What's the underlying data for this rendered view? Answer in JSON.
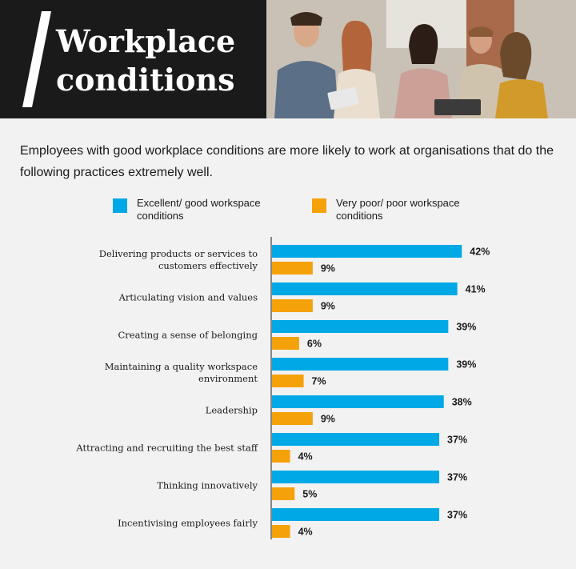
{
  "header": {
    "title_line1": "Workplace",
    "title_line2": "conditions"
  },
  "subtitle": "Employees with good workplace conditions are more likely to work at organisations that do the following practices extremely well.",
  "colors": {
    "excellent": "#00a9e6",
    "poor": "#f5a10a",
    "header_bg": "#1a1a1a",
    "page_bg": "#f2f2f2"
  },
  "chart_data": {
    "type": "bar",
    "orientation": "horizontal",
    "title": "",
    "xlabel": "",
    "ylabel": "",
    "grid": false,
    "legend_position": "top",
    "categories": [
      "Delivering products or services to customers effectively",
      "Articulating vision and values",
      "Creating a sense of belonging",
      "Maintaining a quality workspace environment",
      "Leadership",
      "Attracting and recruiting the best staff",
      "Thinking innovatively",
      "Incentivising employees fairly"
    ],
    "category_lines": [
      [
        "Delivering products or services to",
        "customers effectively"
      ],
      [
        "Articulating vision and values"
      ],
      [
        "Creating a sense of belonging"
      ],
      [
        "Maintaining a quality workspace",
        "environment"
      ],
      [
        "Leadership"
      ],
      [
        "Attracting and recruiting the best staff"
      ],
      [
        "Thinking innovatively"
      ],
      [
        "Incentivising employees fairly"
      ]
    ],
    "series": [
      {
        "name": "Excellent/ good workspace conditions",
        "values": [
          42,
          41,
          39,
          39,
          38,
          37,
          37,
          37
        ],
        "labels": [
          "42%",
          "41%",
          "39%",
          "39%",
          "38%",
          "37%",
          "37%",
          "37%"
        ]
      },
      {
        "name": "Very poor/ poor workspace conditions",
        "values": [
          9,
          9,
          6,
          7,
          9,
          4,
          5,
          4
        ],
        "labels": [
          "9%",
          "9%",
          "6%",
          "7%",
          "9%",
          "4%",
          "5%",
          "4%"
        ]
      }
    ],
    "legend": {
      "excellent_lines": [
        "Excellent/ good workspace",
        "conditions"
      ],
      "poor_lines": [
        "Very poor/ poor workspace",
        "conditions"
      ]
    },
    "xlim": [
      0,
      100
    ]
  }
}
